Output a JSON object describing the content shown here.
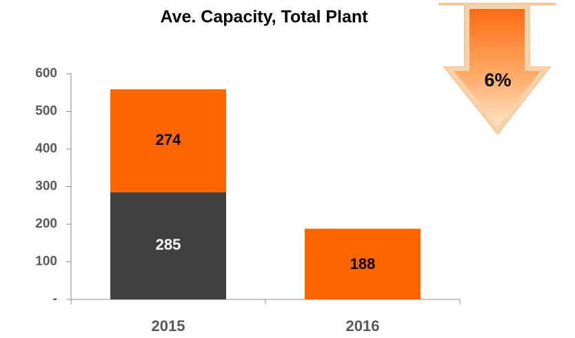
{
  "chart_data": {
    "type": "stacked_bar",
    "title": "Ave. Capacity, Total Plant",
    "categories": [
      "2015",
      "2016"
    ],
    "series": [
      {
        "name": null,
        "color": "#404040",
        "values": [
          285,
          null
        ]
      },
      {
        "name": null,
        "color": "#ff6600",
        "values": [
          274,
          188
        ]
      }
    ],
    "ylim": [
      0,
      600
    ],
    "yticks": [
      {
        "value": 0,
        "label": "-"
      },
      100,
      200,
      300,
      400,
      500,
      600
    ],
    "annotation": "6%"
  }
}
